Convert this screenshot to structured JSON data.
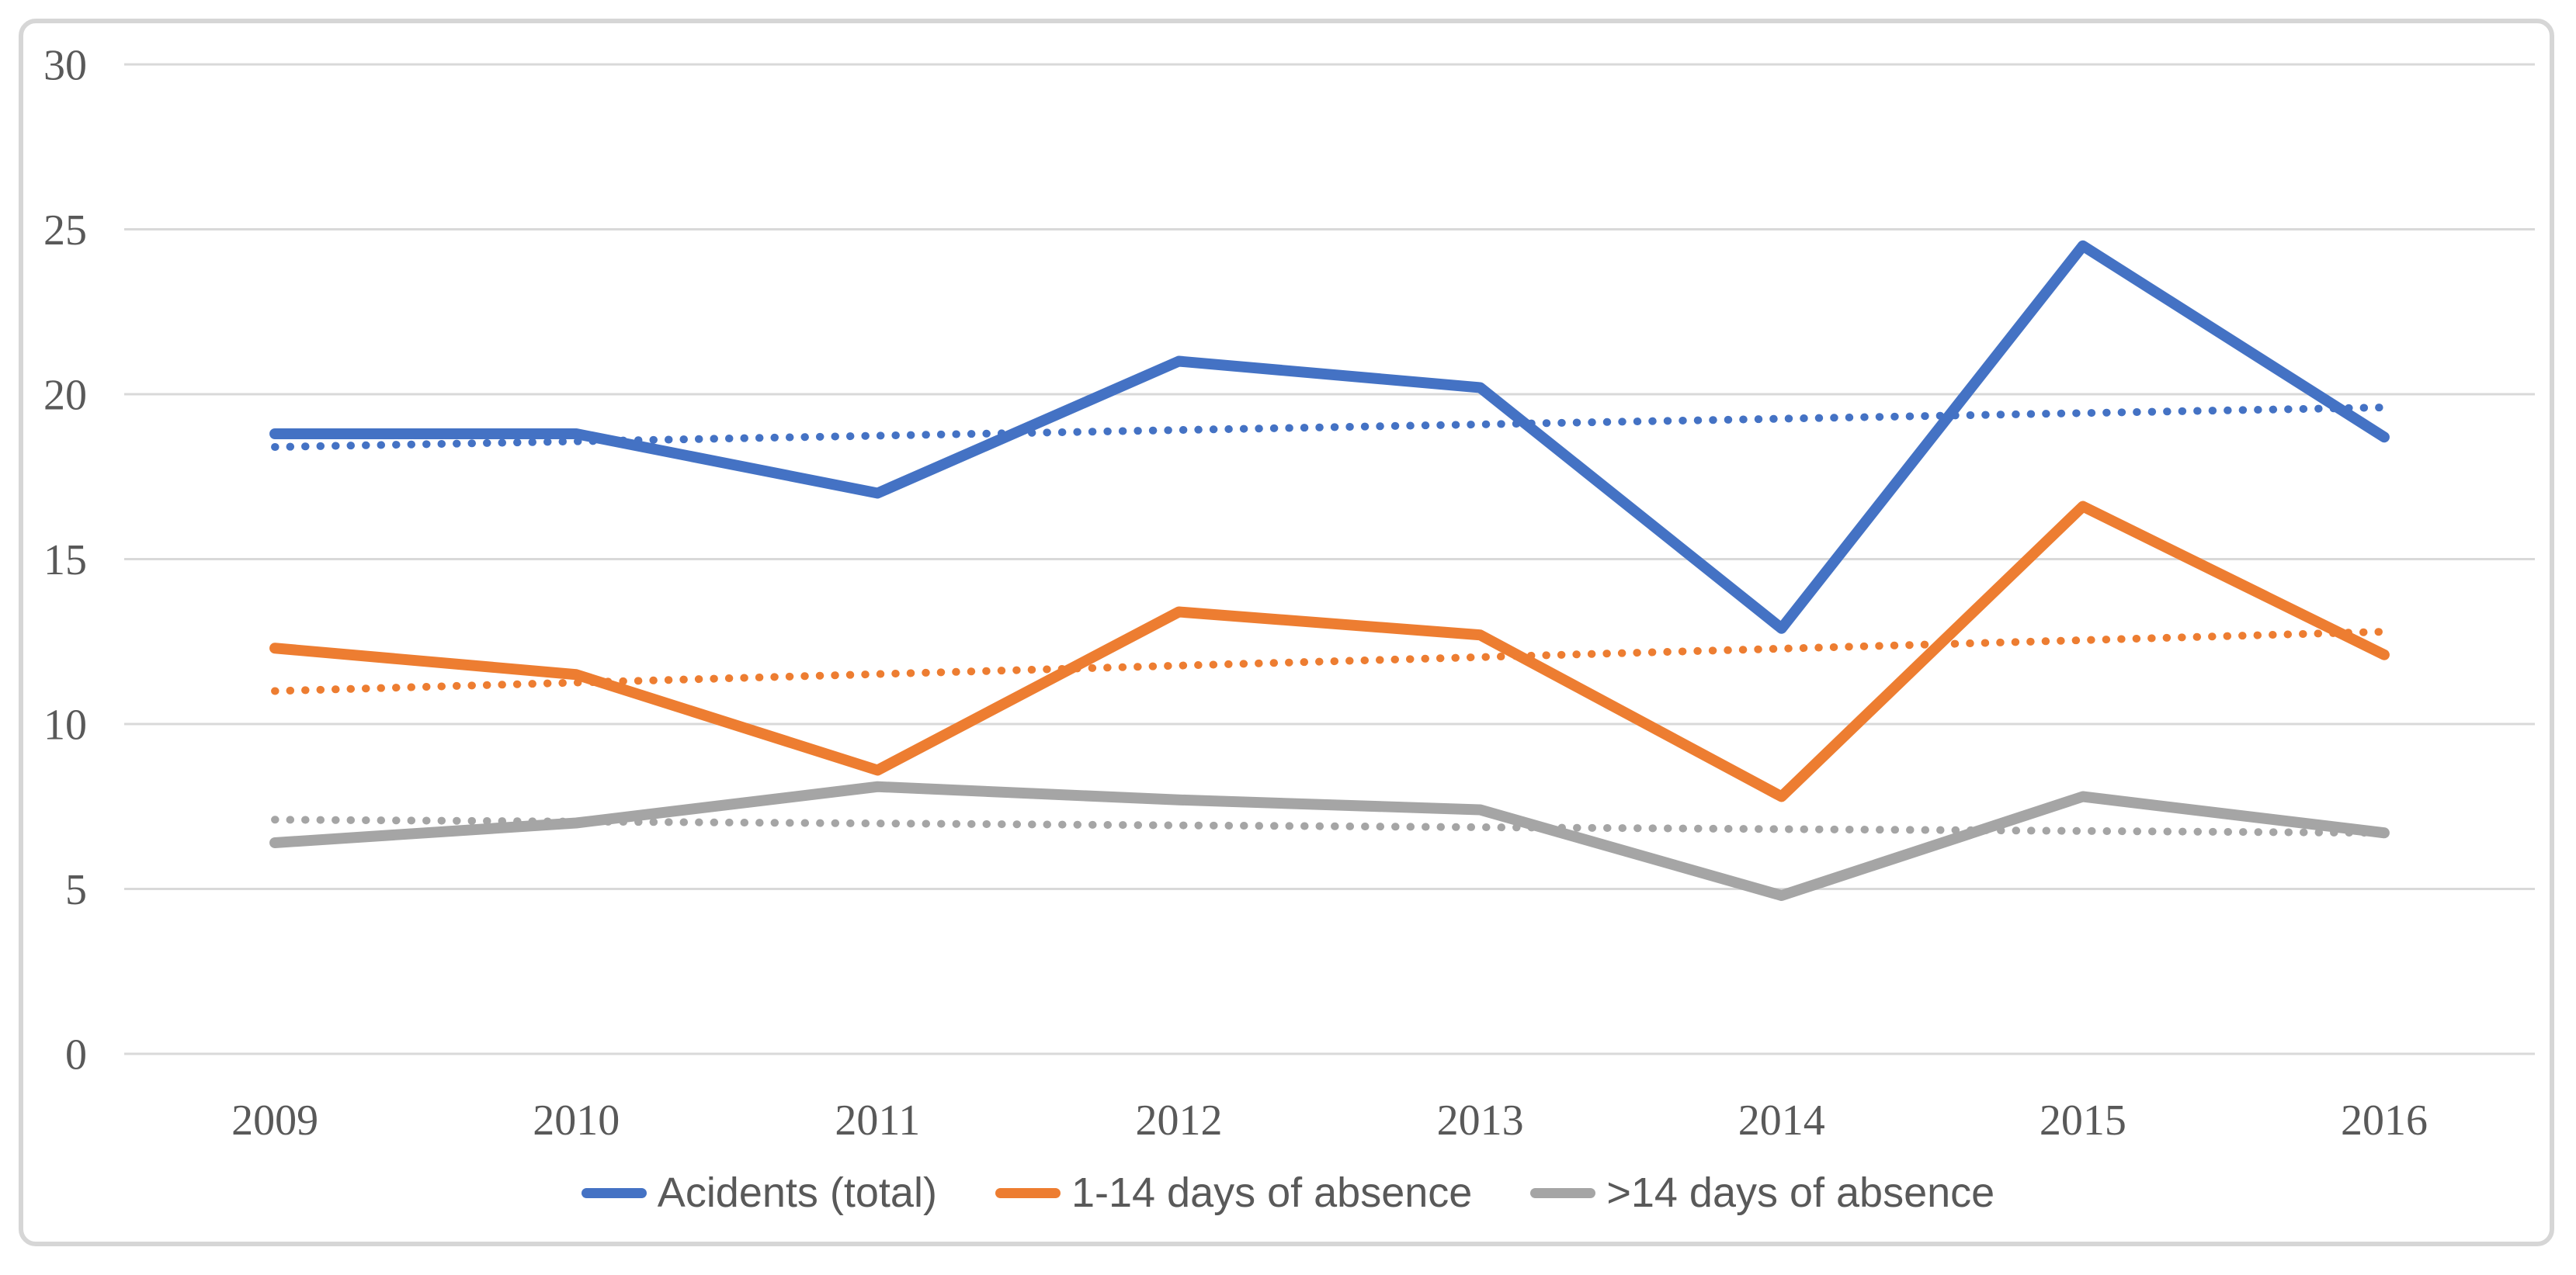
{
  "chart_data": {
    "type": "line",
    "title": "",
    "xlabel": "",
    "ylabel": "",
    "categories": [
      "2009",
      "2010",
      "2011",
      "2012",
      "2013",
      "2014",
      "2015",
      "2016"
    ],
    "series": [
      {
        "name": "Acidents (total)",
        "color": "#4472C4",
        "style": "solid",
        "values": [
          18.8,
          18.8,
          17.0,
          21.0,
          20.2,
          12.9,
          24.5,
          18.7
        ]
      },
      {
        "name": "1-14 days of absence",
        "color": "#ED7D31",
        "style": "solid",
        "values": [
          12.3,
          11.5,
          8.6,
          13.4,
          12.7,
          7.8,
          16.6,
          12.1
        ]
      },
      {
        "name": ">14 days of absence",
        "color": "#A5A5A5",
        "style": "solid",
        "values": [
          6.4,
          7.0,
          8.1,
          7.7,
          7.4,
          4.8,
          7.8,
          6.7
        ]
      }
    ],
    "trendlines": [
      {
        "series": "Acidents (total)",
        "color": "#4472C4",
        "style": "dotted",
        "start_value": 18.4,
        "end_value": 19.6
      },
      {
        "series": "1-14 days of absence",
        "color": "#ED7D31",
        "style": "dotted",
        "start_value": 11.0,
        "end_value": 12.8
      },
      {
        "series": ">14 days of absence",
        "color": "#A5A5A5",
        "style": "dotted",
        "start_value": 7.1,
        "end_value": 6.7
      }
    ],
    "ylim": [
      0,
      30
    ],
    "yticks": [
      0,
      5,
      10,
      15,
      20,
      25,
      30
    ],
    "grid": true,
    "legend_position": "bottom"
  },
  "legend": {
    "items": [
      {
        "label": "Acidents (total)"
      },
      {
        "label": "1-14 days of absence"
      },
      {
        "label": ">14 days of absence"
      }
    ]
  },
  "colors": {
    "grid_line": "#D9D9D9",
    "axis_text": "#595959",
    "frame_border": "#D6D6D6",
    "background": "#FFFFFF",
    "series_blue": "#4472C4",
    "series_orange": "#ED7D31",
    "series_gray": "#A5A5A5"
  }
}
